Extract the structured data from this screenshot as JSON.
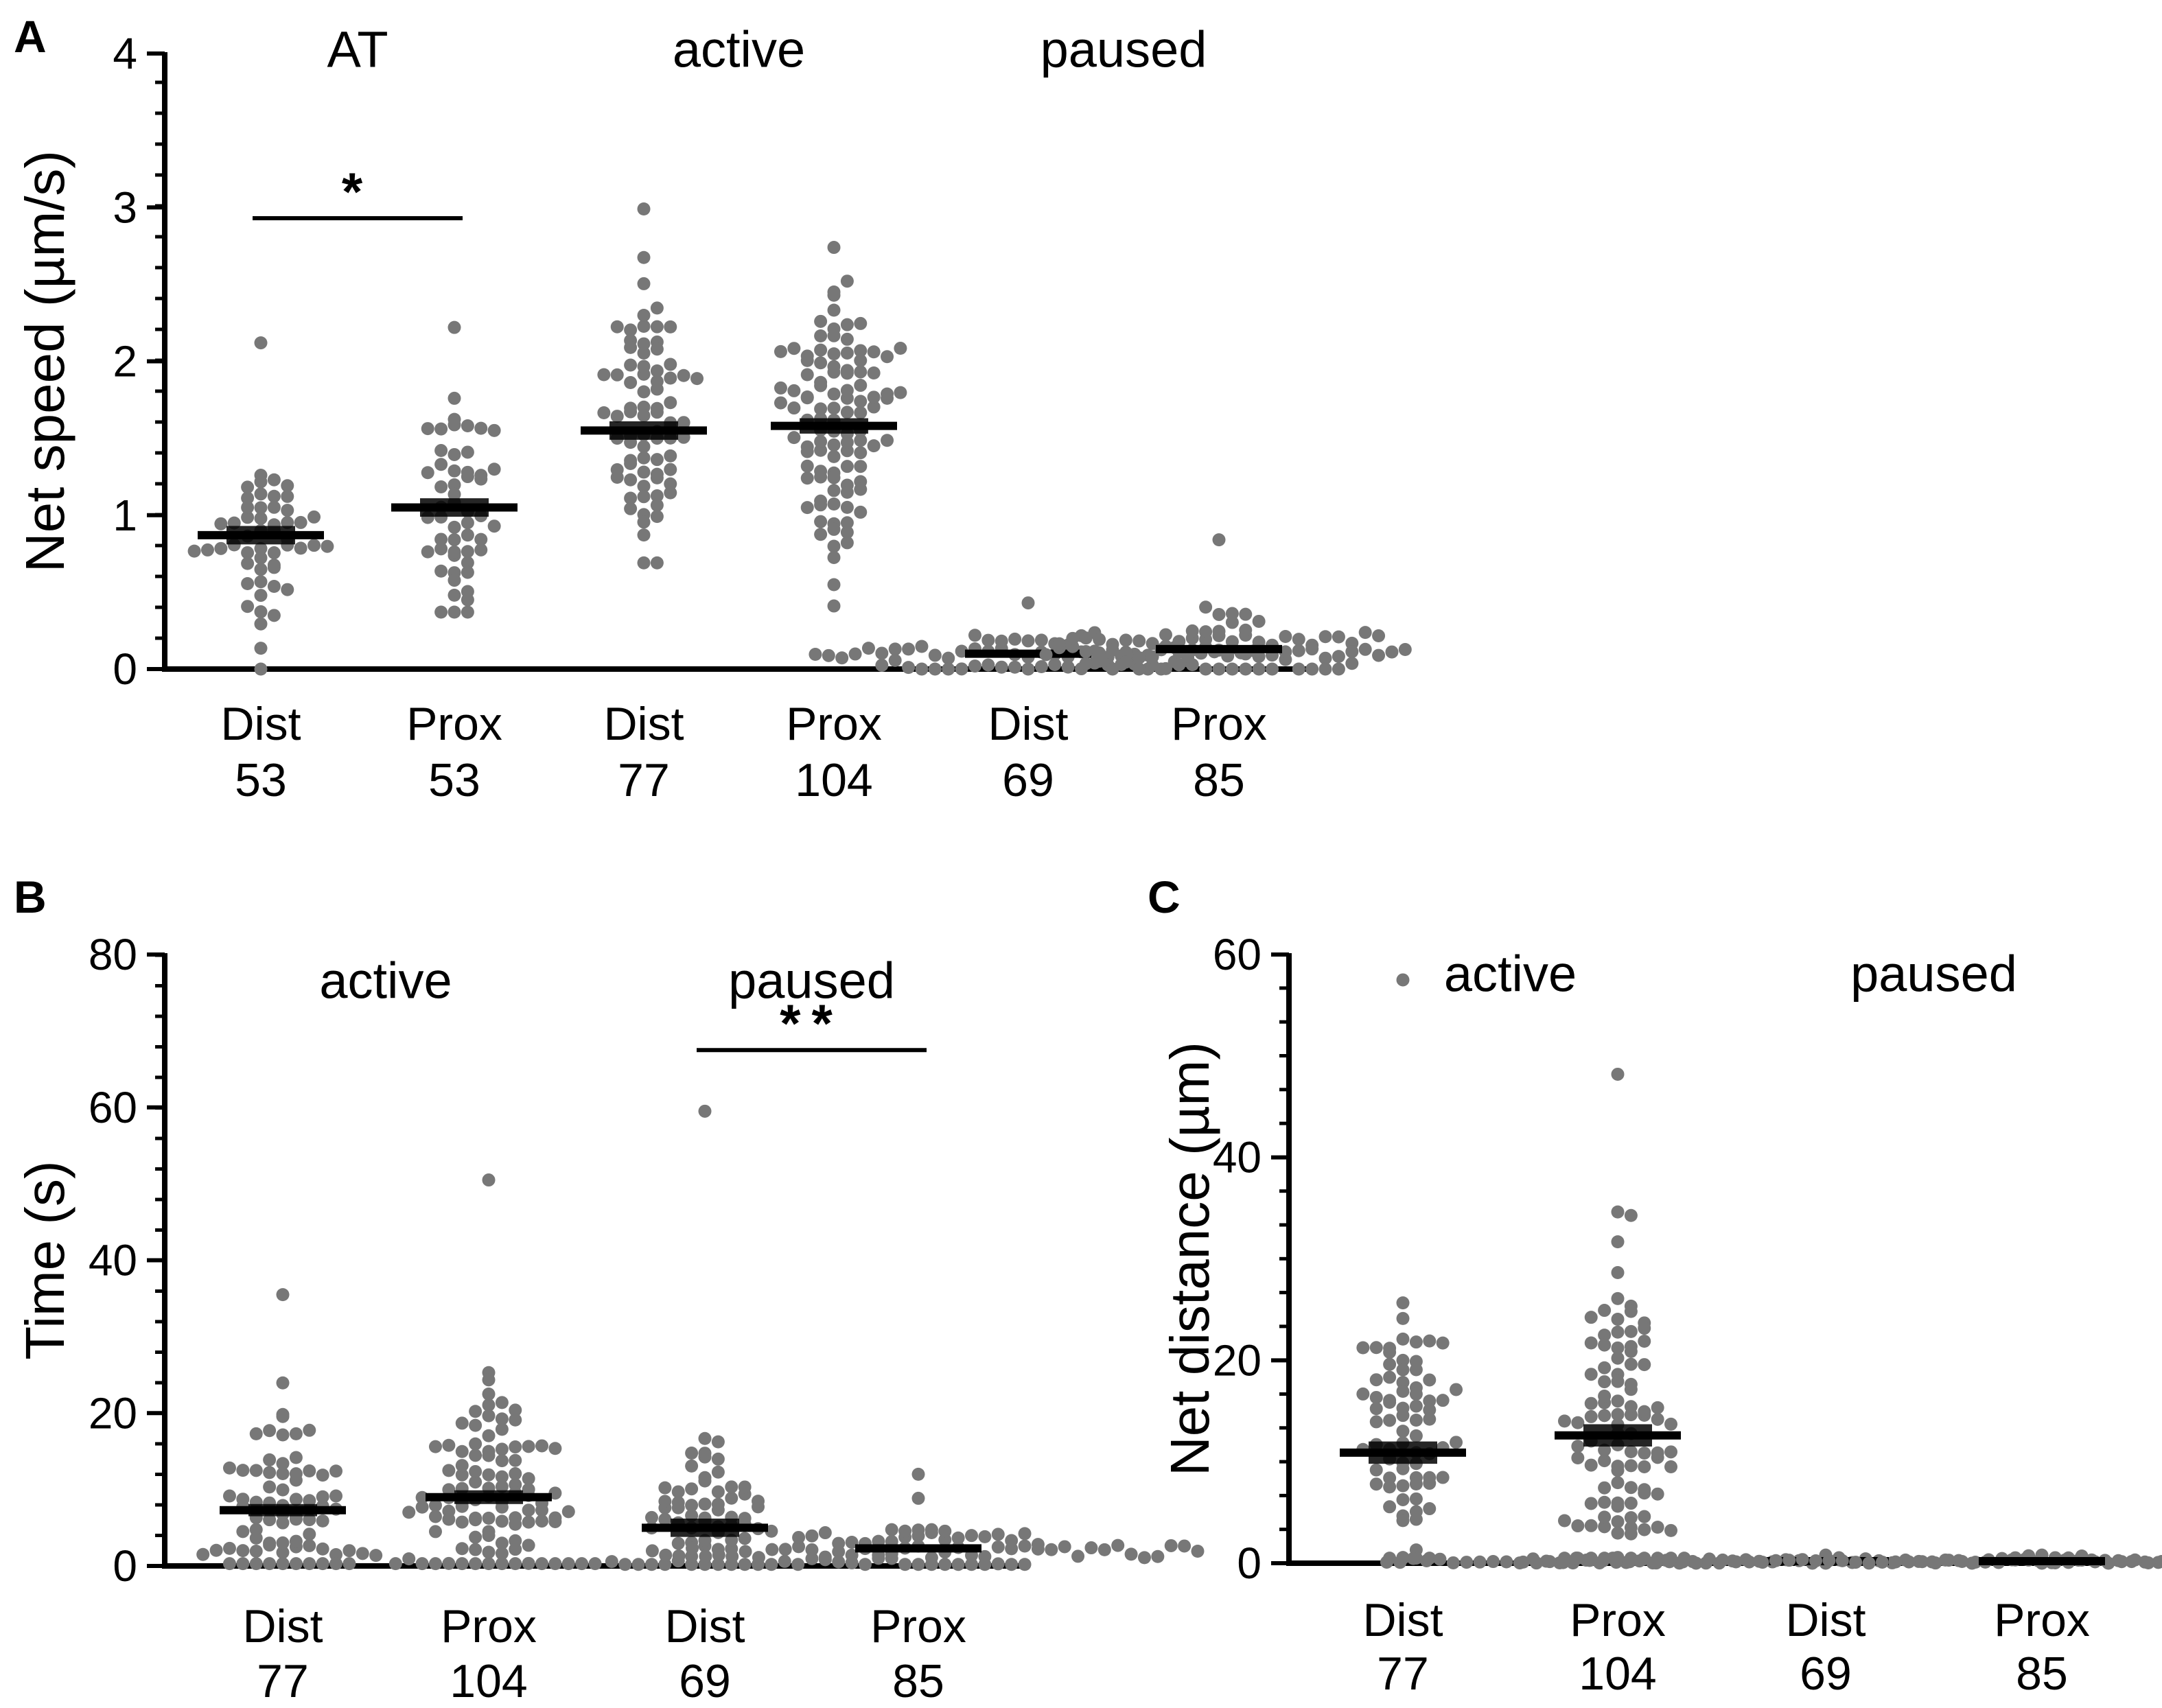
{
  "colors": {
    "dots": "#777777",
    "lines": "#000000"
  },
  "chart_data": [
    {
      "panel": "A",
      "type": "scatter",
      "subtype": "dot-plot",
      "ylabel": "Net speed (µm/s)",
      "ylim": [
        0,
        4
      ],
      "yticks": [
        0,
        1,
        2,
        3,
        4
      ],
      "groups": [
        {
          "label": "AT",
          "span": [
            0,
            1
          ]
        },
        {
          "label": "active",
          "span": [
            2,
            3
          ]
        },
        {
          "label": "paused",
          "span": [
            4,
            5
          ]
        }
      ],
      "categories": [
        {
          "label": "Dist",
          "n": "53",
          "mean": 0.87,
          "sem": 0.06,
          "spread": 0.28,
          "max": 2.12,
          "min": 0.0
        },
        {
          "label": "Prox",
          "n": "53",
          "mean": 1.05,
          "sem": 0.06,
          "spread": 0.35,
          "max": 2.22,
          "min": 0.37
        },
        {
          "label": "Dist",
          "n": "77",
          "mean": 1.55,
          "sem": 0.06,
          "spread": 0.45,
          "max": 2.99,
          "min": 0.69
        },
        {
          "label": "Prox",
          "n": "104",
          "mean": 1.58,
          "sem": 0.05,
          "spread": 0.45,
          "max": 2.74,
          "min": 0.41
        },
        {
          "label": "Dist",
          "n": "69",
          "mean": 0.1,
          "sem": 0.01,
          "spread": 0.08,
          "max": 0.43,
          "min": 0.0
        },
        {
          "label": "Prox",
          "n": "85",
          "mean": 0.13,
          "sem": 0.01,
          "spread": 0.1,
          "max": 0.84,
          "min": 0.0
        }
      ],
      "significance": [
        {
          "from": 0,
          "to": 1,
          "label": "*",
          "y": 2.93
        }
      ]
    },
    {
      "panel": "B",
      "type": "scatter",
      "subtype": "dot-plot",
      "ylabel": "Time (s)",
      "ylim": [
        0,
        80
      ],
      "yticks": [
        0,
        20,
        40,
        60,
        80
      ],
      "groups": [
        {
          "label": "active",
          "span": [
            0,
            1
          ]
        },
        {
          "label": "paused",
          "span": [
            2,
            3
          ]
        }
      ],
      "categories": [
        {
          "label": "Dist",
          "n": "77",
          "mean": 7.3,
          "sem": 0.8,
          "spread": 6,
          "max": 35.5,
          "min": 0.3
        },
        {
          "label": "Prox",
          "n": "104",
          "mean": 9.0,
          "sem": 0.9,
          "spread": 7,
          "max": 50.5,
          "min": 0.3
        },
        {
          "label": "Dist",
          "n": "69",
          "mean": 5.0,
          "sem": 1.2,
          "spread": 5,
          "max": 59.5,
          "min": 0.2
        },
        {
          "label": "Prox",
          "n": "85",
          "mean": 2.3,
          "sem": 0.3,
          "spread": 2,
          "max": 12.0,
          "min": 0.2
        }
      ],
      "significance": [
        {
          "from": 2,
          "to": 3,
          "label": "**",
          "y": 67.5
        }
      ]
    },
    {
      "panel": "C",
      "type": "scatter",
      "subtype": "dot-plot",
      "ylabel": "Net distance (µm)",
      "ylim": [
        0,
        60
      ],
      "yticks": [
        0,
        20,
        40,
        60
      ],
      "groups": [
        {
          "label": "active",
          "span": [
            0,
            1
          ]
        },
        {
          "label": "paused",
          "span": [
            2,
            3
          ]
        }
      ],
      "categories": [
        {
          "label": "Dist",
          "n": "77",
          "mean": 10.9,
          "sem": 1.1,
          "spread": 7,
          "max": 57.5,
          "min": 0.5
        },
        {
          "label": "Prox",
          "n": "104",
          "mean": 12.6,
          "sem": 1.1,
          "spread": 9,
          "max": 48.2,
          "min": 0.5
        },
        {
          "label": "Dist",
          "n": "69",
          "mean": 0.2,
          "sem": 0.02,
          "spread": 0.25,
          "max": 0.8,
          "min": 0.0
        },
        {
          "label": "Prox",
          "n": "85",
          "mean": 0.2,
          "sem": 0.02,
          "spread": 0.25,
          "max": 0.8,
          "min": 0.0
        }
      ],
      "significance": []
    }
  ]
}
